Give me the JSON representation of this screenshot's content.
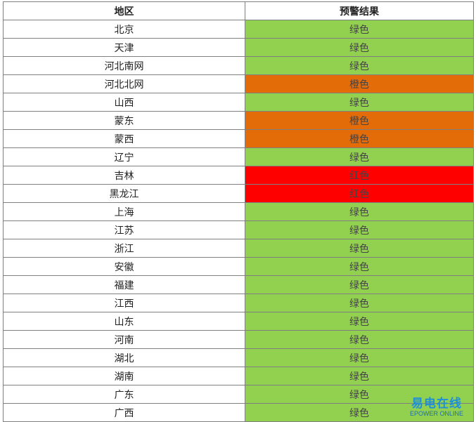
{
  "table": {
    "header": [
      "地区",
      "预警结果"
    ],
    "rows": [
      {
        "region": "北京",
        "result": "绿色",
        "color": "#92d050"
      },
      {
        "region": "天津",
        "result": "绿色",
        "color": "#92d050"
      },
      {
        "region": "河北南网",
        "result": "绿色",
        "color": "#92d050"
      },
      {
        "region": "河北北网",
        "result": "橙色",
        "color": "#e36c09"
      },
      {
        "region": "山西",
        "result": "绿色",
        "color": "#92d050"
      },
      {
        "region": "蒙东",
        "result": "橙色",
        "color": "#e36c09"
      },
      {
        "region": "蒙西",
        "result": "橙色",
        "color": "#e36c09"
      },
      {
        "region": "辽宁",
        "result": "绿色",
        "color": "#92d050"
      },
      {
        "region": "吉林",
        "result": "红色",
        "color": "#ff0000"
      },
      {
        "region": "黑龙江",
        "result": "红色",
        "color": "#ff0000"
      },
      {
        "region": "上海",
        "result": "绿色",
        "color": "#92d050"
      },
      {
        "region": "江苏",
        "result": "绿色",
        "color": "#92d050"
      },
      {
        "region": "浙江",
        "result": "绿色",
        "color": "#92d050"
      },
      {
        "region": "安徽",
        "result": "绿色",
        "color": "#92d050"
      },
      {
        "region": "福建",
        "result": "绿色",
        "color": "#92d050"
      },
      {
        "region": "江西",
        "result": "绿色",
        "color": "#92d050"
      },
      {
        "region": "山东",
        "result": "绿色",
        "color": "#92d050"
      },
      {
        "region": "河南",
        "result": "绿色",
        "color": "#92d050"
      },
      {
        "region": "湖北",
        "result": "绿色",
        "color": "#92d050"
      },
      {
        "region": "湖南",
        "result": "绿色",
        "color": "#92d050"
      },
      {
        "region": "广东",
        "result": "绿色",
        "color": "#92d050"
      },
      {
        "region": "广西",
        "result": "绿色",
        "color": "#92d050"
      }
    ]
  },
  "watermark": {
    "logo": "易电在线",
    "subtitle": "EPOWER ONLINE"
  }
}
